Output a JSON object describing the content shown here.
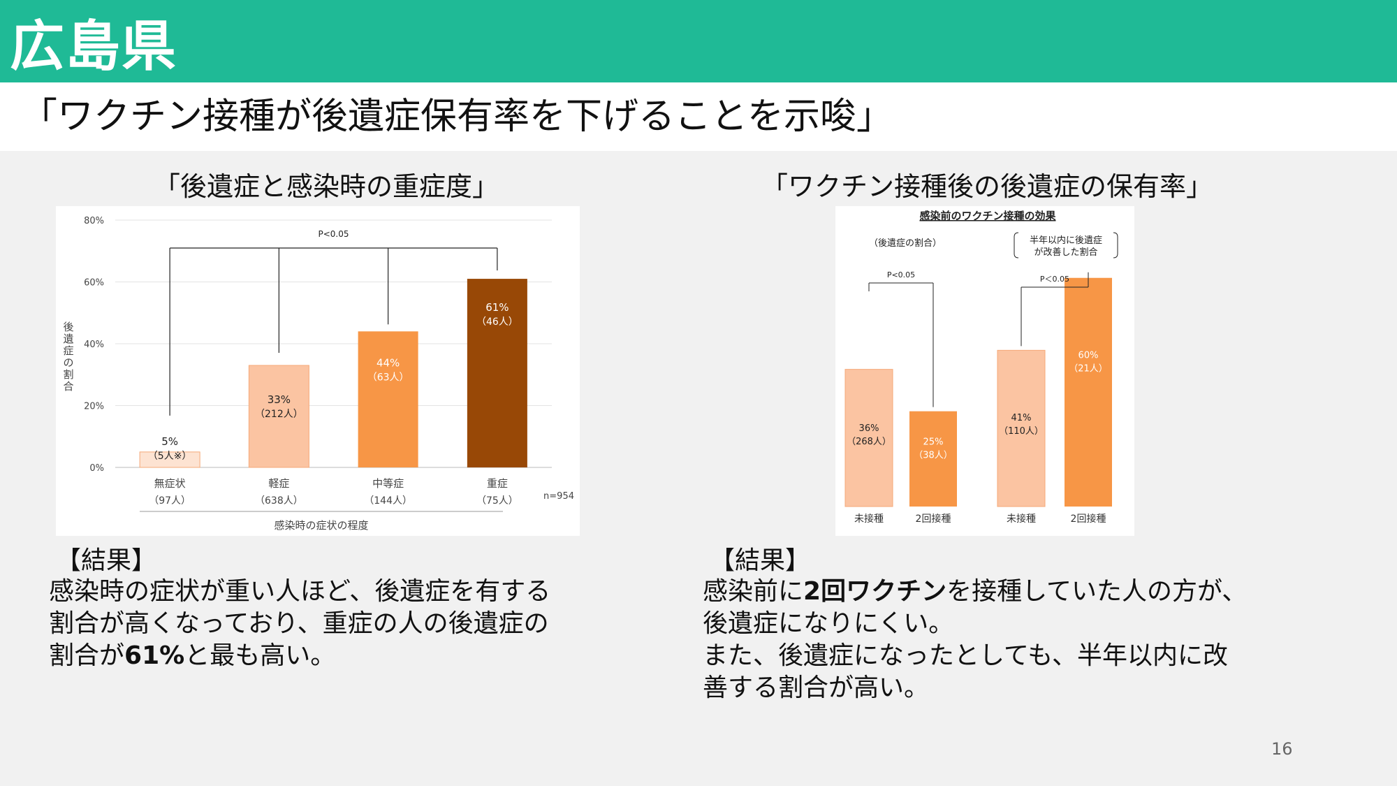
{
  "header": {
    "title": "広島県"
  },
  "subtitle": "「ワクチン接種が後遺症保有率を下げることを示唆」",
  "left_panel": {
    "title": "「後遺症と感染時の重症度」",
    "result_heading": "【結果】",
    "result_lines": [
      "感染時の症状が重い人ほど、後遺症を有する",
      "割合が高くなっており、重症の人の後遺症の"
    ],
    "result_line3_pre": "割合が",
    "result_line3_bold": "61%",
    "result_line3_post": "と最も高い。"
  },
  "right_panel": {
    "title": "「ワクチン接種後の後遺症の保有率」",
    "result_heading": "【結果】",
    "result_line1_pre": "感染前に",
    "result_line1_bold": "2回ワクチン",
    "result_line1_post": "を接種していた人の方が、",
    "result_lines": [
      "後遺症になりにくい。",
      "また、後遺症になったとしても、半年以内に改",
      "善する割合が高い。"
    ]
  },
  "page_number": "16",
  "chart_data": [
    {
      "type": "bar",
      "categories": [
        "無症状",
        "軽症",
        "中等症",
        "重症"
      ],
      "category_counts": [
        "（97人）",
        "（638人）",
        "（144人）",
        "（75人）"
      ],
      "values": [
        5,
        33,
        44,
        61
      ],
      "value_labels": [
        "5%",
        "33%",
        "44%",
        "61%"
      ],
      "count_labels": [
        "（5人※）",
        "（212人）",
        "（63人）",
        "（46人）"
      ],
      "colors": [
        "#fde3d2",
        "#fbc4a2",
        "#f79646",
        "#984806"
      ],
      "label_colors": [
        "#222222",
        "#222222",
        "#ffffff",
        "#ffffff"
      ],
      "ylabel": "後遺症の割合",
      "xlabel": "感染時の症状の程度",
      "yticks": [
        "0%",
        "20%",
        "40%",
        "60%",
        "80%"
      ],
      "ylim": [
        0,
        80
      ],
      "grid": true,
      "annotation": "P<0.05",
      "note": "n=954"
    },
    {
      "type": "bar",
      "title": "感染前のワクチン接種の効果",
      "groups": [
        {
          "label": "（後遺症の割合）",
          "categories": [
            "未接種",
            "2回接種"
          ],
          "values": [
            36,
            25
          ],
          "value_labels": [
            "36%",
            "25%"
          ],
          "count_labels": [
            "（268人）",
            "（38人）"
          ],
          "colors": [
            "#fbc4a2",
            "#f79646"
          ],
          "label_colors": [
            "#222222",
            "#ffffff"
          ],
          "annotation": "P<0.05"
        },
        {
          "label_lines": [
            "半年以内に後遺症",
            "が改善した割合"
          ],
          "categories": [
            "未接種",
            "2回接種"
          ],
          "values": [
            41,
            60
          ],
          "value_labels": [
            "41%",
            "60%"
          ],
          "count_labels": [
            "（110人）",
            "（21人）"
          ],
          "colors": [
            "#fbc4a2",
            "#f79646"
          ],
          "label_colors": [
            "#222222",
            "#ffffff"
          ],
          "annotation": "P＜0.05"
        }
      ]
    }
  ]
}
